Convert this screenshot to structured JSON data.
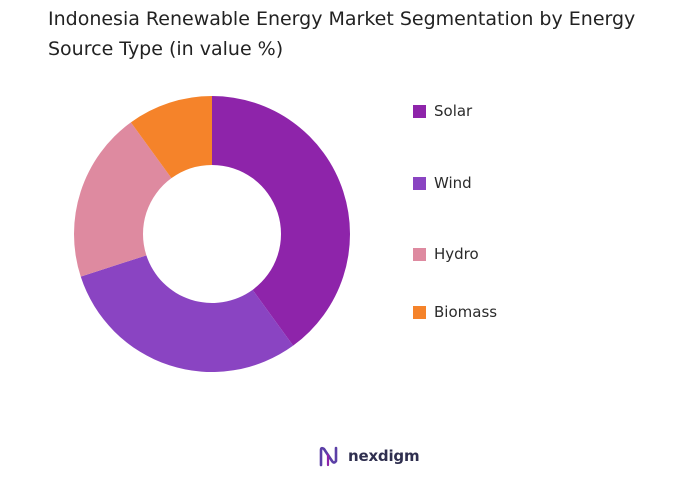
{
  "title": "Indonesia Renewable Energy Market Segmentation by Energy Source Type (in value %)",
  "brand": "nexdigm",
  "colors": {
    "solar": "#8e24aa",
    "wind": "#8a44c2",
    "hydro": "#de8aa0",
    "biomass": "#f5832a"
  },
  "chart_data": {
    "type": "pie",
    "variant": "donut",
    "title": "Indonesia Renewable Energy Market Segmentation by Energy Source Type (in value %)",
    "categories": [
      "Solar",
      "Wind",
      "Hydro",
      "Biomass"
    ],
    "values": [
      40,
      30,
      20,
      10
    ],
    "colors": [
      "#8e24aa",
      "#8a44c2",
      "#de8aa0",
      "#f5832a"
    ],
    "legend": "right",
    "start_angle": "top",
    "direction": "clockwise"
  }
}
